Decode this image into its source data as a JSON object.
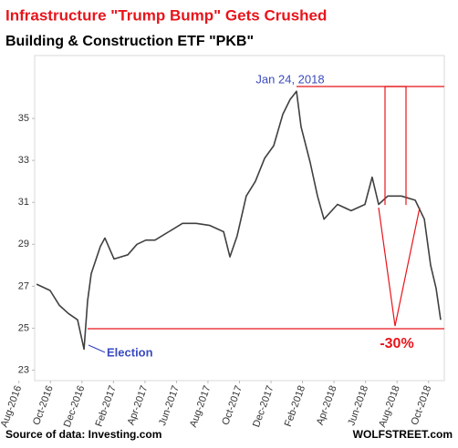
{
  "chart_data": {
    "type": "line",
    "title": "Infrastructure \"Trump Bump\" Gets Crushed",
    "subtitle": "Building & Construction ETF \"PKB\"",
    "source": "Source of data: Investing.com",
    "credit": "WOLFSTREET.com",
    "annotations": [
      "Jan 24, 2018",
      "Election",
      "-30%"
    ],
    "xlim": [
      1,
      27
    ],
    "xticks": [
      {
        "value": 0,
        "label": "Aug-2016"
      },
      {
        "value": 2,
        "label": "Oct-2016"
      },
      {
        "value": 4,
        "label": "Dec-2016"
      },
      {
        "value": 6,
        "label": "Feb-2017"
      },
      {
        "value": 8,
        "label": "Apr-2017"
      },
      {
        "value": 10,
        "label": "Jun-2017"
      },
      {
        "value": 12,
        "label": "Aug-2017"
      },
      {
        "value": 14,
        "label": "Oct-2017"
      },
      {
        "value": 16,
        "label": "Dec-2017"
      },
      {
        "value": 18,
        "label": "Feb-2018"
      },
      {
        "value": 20,
        "label": "Apr-2018"
      },
      {
        "value": 22,
        "label": "Jun-2018"
      },
      {
        "value": 24,
        "label": "Aug-2018"
      },
      {
        "value": 26,
        "label": "Oct-2018"
      }
    ],
    "ylim": [
      22.5,
      38
    ],
    "yticks": [
      23,
      25,
      27,
      29,
      31,
      33,
      35
    ],
    "grid": false,
    "x": [
      1.12,
      1.98,
      2.56,
      3.14,
      3.72,
      4.13,
      4.36,
      4.59,
      5.17,
      5.46,
      6.04,
      6.91,
      7.49,
      8.06,
      8.64,
      9.51,
      10.38,
      11.25,
      12.12,
      12.99,
      13.39,
      13.85,
      14.43,
      15.01,
      15.59,
      16.17,
      16.75,
      17.21,
      17.62,
      17.91,
      18.49,
      18.95,
      19.36,
      20.22,
      21.09,
      21.96,
      22.42,
      22.83,
      23.41,
      24.28,
      25.15,
      25.73,
      26.13,
      26.48,
      26.77
    ],
    "series": [
      {
        "name": "PKB",
        "color": "#404040",
        "values": [
          27.1,
          26.8,
          26.1,
          25.7,
          25.4,
          24.0,
          26.3,
          27.6,
          28.9,
          29.3,
          28.3,
          28.5,
          29.0,
          29.2,
          29.2,
          29.6,
          30.0,
          30.0,
          29.9,
          29.6,
          28.4,
          29.4,
          31.3,
          32.0,
          33.1,
          33.7,
          35.2,
          35.9,
          36.3,
          34.6,
          32.9,
          31.3,
          30.2,
          30.9,
          30.6,
          30.9,
          32.2,
          30.9,
          31.3,
          31.3,
          31.1,
          30.2,
          28.0,
          26.9,
          25.4
        ]
      }
    ]
  }
}
